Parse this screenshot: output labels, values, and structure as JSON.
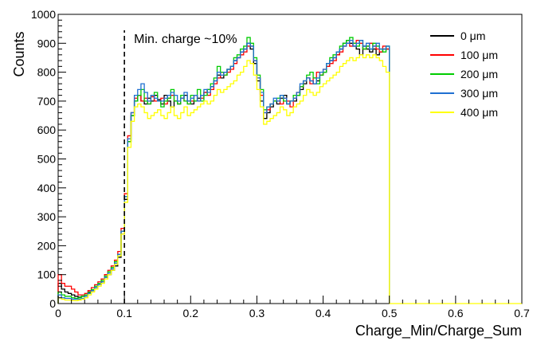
{
  "chart_data": {
    "type": "line",
    "xlabel": "Charge_Min/Charge_Sum",
    "ylabel": "Counts",
    "xlim": [
      0,
      0.7
    ],
    "ylim": [
      0,
      1000
    ],
    "x_ticks": [
      "0",
      "0.1",
      "0.2",
      "0.3",
      "0.4",
      "0.5",
      "0.6",
      "0.7"
    ],
    "y_ticks": [
      "0",
      "100",
      "200",
      "300",
      "400",
      "500",
      "600",
      "700",
      "800",
      "900",
      "1000"
    ],
    "grid": false,
    "legend_position": "top-right",
    "annotation": {
      "text": "Min. charge ~10%",
      "x": 0.1
    },
    "bin_width": 0.005,
    "series": [
      {
        "name": "0 μm",
        "color": "#000000",
        "values": [
          70,
          50,
          40,
          35,
          30,
          25,
          22,
          25,
          30,
          40,
          45,
          55,
          65,
          75,
          90,
          100,
          115,
          130,
          160,
          240,
          360,
          560,
          650,
          700,
          720,
          700,
          690,
          710,
          700,
          720,
          705,
          690,
          720,
          700,
          680,
          700,
          690,
          710,
          720,
          700,
          690,
          700,
          710,
          720,
          730,
          740,
          750,
          770,
          790,
          780,
          800,
          810,
          820,
          840,
          850,
          870,
          880,
          900,
          880,
          830,
          770,
          700,
          640,
          660,
          680,
          700,
          690,
          710,
          720,
          690,
          700,
          700,
          720,
          740,
          760,
          780,
          770,
          760,
          770,
          790,
          800,
          820,
          840,
          850,
          860,
          880,
          900,
          910,
          900,
          890,
          880,
          860,
          890,
          880,
          870,
          880,
          860,
          870,
          880,
          880
        ],
        "slice": [
          0,
          100
        ]
      },
      {
        "name": "100 μm",
        "color": "#ff0000",
        "values": [
          100,
          70,
          60,
          60,
          50,
          40,
          30,
          30,
          35,
          45,
          55,
          65,
          75,
          85,
          100,
          115,
          130,
          150,
          180,
          260,
          380,
          580,
          660,
          710,
          720,
          700,
          710,
          690,
          715,
          700,
          700,
          710,
          690,
          710,
          720,
          700,
          690,
          710,
          700,
          690,
          700,
          720,
          700,
          710,
          730,
          720,
          740,
          760,
          780,
          800,
          790,
          800,
          810,
          830,
          850,
          860,
          870,
          890,
          890,
          840,
          780,
          720,
          660,
          670,
          690,
          700,
          700,
          690,
          710,
          700,
          680,
          710,
          730,
          750,
          770,
          780,
          760,
          780,
          800,
          790,
          810,
          820,
          830,
          840,
          860,
          870,
          890,
          900,
          890,
          900,
          910,
          900,
          880,
          890,
          900,
          890,
          880,
          870,
          890,
          880
        ],
        "slice": [
          0,
          100
        ]
      },
      {
        "name": "200 μm",
        "color": "#00cc00",
        "values": [
          40,
          30,
          25,
          25,
          20,
          18,
          20,
          25,
          30,
          38,
          48,
          60,
          70,
          80,
          95,
          110,
          125,
          145,
          170,
          250,
          370,
          560,
          650,
          700,
          720,
          740,
          700,
          690,
          720,
          730,
          700,
          680,
          700,
          710,
          740,
          700,
          690,
          720,
          700,
          690,
          720,
          700,
          740,
          700,
          720,
          740,
          760,
          780,
          820,
          800,
          790,
          810,
          820,
          850,
          860,
          880,
          890,
          920,
          900,
          850,
          790,
          740,
          670,
          680,
          690,
          700,
          710,
          720,
          700,
          690,
          700,
          720,
          720,
          750,
          770,
          790,
          800,
          780,
          760,
          790,
          800,
          830,
          850,
          860,
          870,
          890,
          900,
          910,
          920,
          900,
          890,
          910,
          880,
          890,
          880,
          900,
          890,
          880,
          870,
          890
        ],
        "slice": [
          0,
          100
        ]
      },
      {
        "name": "300 μm",
        "color": "#1f6fd1",
        "values": [
          30,
          20,
          18,
          18,
          15,
          15,
          15,
          18,
          25,
          35,
          45,
          55,
          65,
          75,
          90,
          105,
          120,
          140,
          170,
          250,
          370,
          570,
          660,
          720,
          740,
          760,
          730,
          700,
          720,
          710,
          700,
          700,
          710,
          720,
          730,
          720,
          700,
          710,
          730,
          700,
          710,
          720,
          700,
          720,
          740,
          730,
          750,
          770,
          800,
          790,
          800,
          810,
          820,
          840,
          850,
          870,
          880,
          900,
          890,
          840,
          780,
          730,
          660,
          680,
          690,
          710,
          700,
          720,
          710,
          690,
          700,
          710,
          730,
          760,
          770,
          780,
          770,
          760,
          780,
          800,
          810,
          830,
          840,
          850,
          870,
          880,
          890,
          900,
          910,
          890,
          900,
          910,
          890,
          900,
          880,
          890,
          900,
          880,
          880,
          890
        ],
        "slice": [
          0,
          100
        ]
      },
      {
        "name": "400 μm",
        "color": "#ffff00",
        "values": [
          20,
          15,
          12,
          12,
          10,
          10,
          12,
          15,
          20,
          30,
          40,
          50,
          60,
          70,
          85,
          100,
          115,
          135,
          165,
          240,
          350,
          540,
          630,
          680,
          690,
          680,
          660,
          640,
          650,
          660,
          670,
          650,
          640,
          660,
          680,
          650,
          640,
          660,
          680,
          650,
          660,
          670,
          680,
          690,
          700,
          690,
          700,
          720,
          740,
          730,
          740,
          750,
          760,
          770,
          790,
          800,
          820,
          840,
          830,
          790,
          740,
          680,
          620,
          630,
          640,
          650,
          660,
          680,
          670,
          650,
          660,
          680,
          690,
          700,
          720,
          740,
          730,
          720,
          730,
          750,
          760,
          770,
          780,
          790,
          800,
          820,
          830,
          840,
          850,
          840,
          850,
          860,
          850,
          860,
          850,
          860,
          850,
          840,
          820,
          800
        ],
        "slice": [
          0,
          100
        ]
      }
    ]
  }
}
